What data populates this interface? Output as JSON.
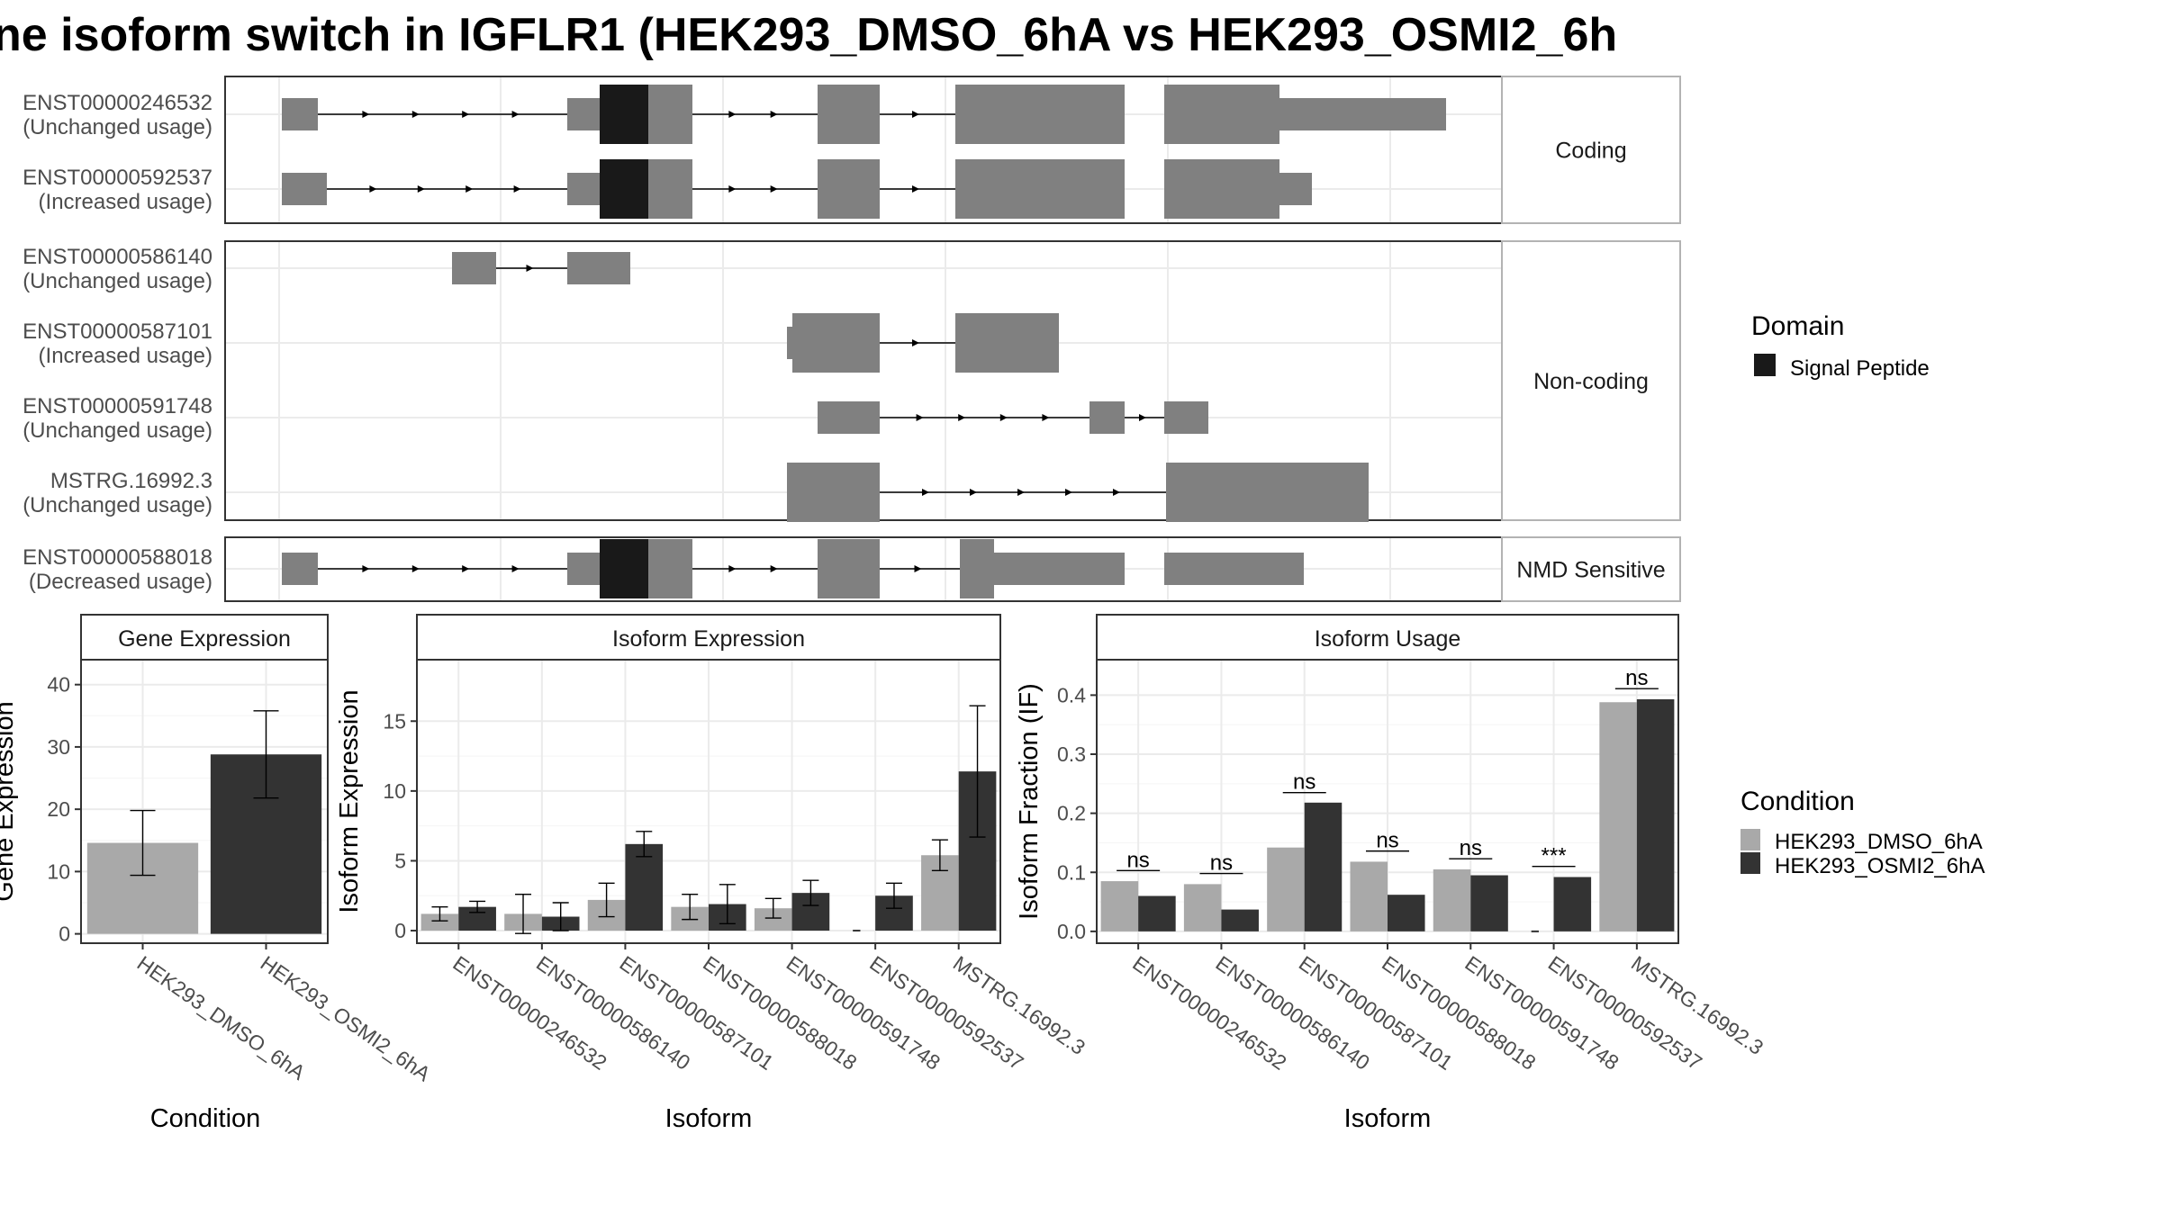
{
  "title": "ne isoform switch in IGFLR1 (HEK293_DMSO_6hA vs HEK293_OSMI2_6h",
  "colors": {
    "condition_1": "#a9a9a9",
    "condition_2": "#333333",
    "exon": "#808080",
    "domain": "#191919"
  },
  "structure": {
    "groups": [
      {
        "label": "Coding",
        "transcripts": [
          {
            "id": "ENST00000246532",
            "usage": "(Unchanged usage)"
          },
          {
            "id": "ENST00000592537",
            "usage": "(Increased usage)"
          }
        ]
      },
      {
        "label": "Non-coding",
        "transcripts": [
          {
            "id": "ENST00000586140",
            "usage": "(Unchanged usage)"
          },
          {
            "id": "ENST00000587101",
            "usage": "(Increased usage)"
          },
          {
            "id": "ENST00000591748",
            "usage": "(Unchanged usage)"
          },
          {
            "id": "MSTRG.16992.3",
            "usage": "(Unchanged usage)"
          }
        ]
      },
      {
        "label": "NMD Sensitive",
        "transcripts": [
          {
            "id": "ENST00000588018",
            "usage": "(Decreased usage)"
          }
        ]
      }
    ]
  },
  "legend_domain": {
    "title": "Domain",
    "items": [
      {
        "label": "Signal Peptide",
        "color": "#191919"
      }
    ]
  },
  "legend_condition": {
    "title": "Condition",
    "items": [
      {
        "label": "HEK293_DMSO_6hA",
        "color": "#a9a9a9"
      },
      {
        "label": "HEK293_OSMI2_6hA",
        "color": "#333333"
      }
    ]
  },
  "chart_data": [
    {
      "type": "bar",
      "panel_title": "Gene Expression",
      "xlabel": "Condition",
      "ylabel": "Gene Expression",
      "categories": [
        "HEK293_DMSO_6hA",
        "HEK293_OSMI2_6hA"
      ],
      "values": [
        14.6,
        28.8
      ],
      "errors": [
        5.2,
        7.0
      ],
      "ylim": [
        -1.5,
        44
      ],
      "yticks": [
        0,
        10,
        20,
        30,
        40
      ]
    },
    {
      "type": "bar",
      "panel_title": "Isoform Expression",
      "xlabel": "Isoform",
      "ylabel": "Isoform Expression",
      "categories": [
        "ENST00000246532",
        "ENST00000586140",
        "ENST00000587101",
        "ENST00000588018",
        "ENST00000591748",
        "ENST00000592537",
        "MSTRG.16992.3"
      ],
      "series": [
        {
          "values": [
            1.2,
            1.2,
            2.2,
            1.7,
            1.6,
            0.0,
            5.4
          ],
          "errors": [
            0.5,
            1.4,
            1.2,
            0.9,
            0.7,
            0.0,
            1.1
          ]
        },
        {
          "values": [
            1.7,
            1.0,
            6.2,
            1.9,
            2.7,
            2.5,
            11.4
          ],
          "errors": [
            0.4,
            1.0,
            0.9,
            1.4,
            0.9,
            0.9,
            4.7
          ]
        }
      ],
      "ylim": [
        -0.9,
        19.4
      ],
      "yticks": [
        0,
        5,
        10,
        15
      ]
    },
    {
      "type": "bar",
      "panel_title": "Isoform Usage",
      "xlabel": "Isoform",
      "ylabel": "Isoform Fraction (IF)",
      "categories": [
        "ENST00000246532",
        "ENST00000586140",
        "ENST00000587101",
        "ENST00000588018",
        "ENST00000591748",
        "ENST00000592537",
        "MSTRG.16992.3"
      ],
      "series": [
        {
          "values": [
            0.085,
            0.08,
            0.142,
            0.118,
            0.105,
            0.0,
            0.388
          ]
        },
        {
          "values": [
            0.06,
            0.037,
            0.218,
            0.062,
            0.095,
            0.092,
            0.393
          ]
        }
      ],
      "significance": [
        "ns",
        "ns",
        "ns",
        "ns",
        "ns",
        "***",
        "ns"
      ],
      "sig_levels": [
        0.103,
        0.098,
        0.235,
        0.136,
        0.123,
        0.11,
        0.411
      ],
      "ylim": [
        -0.02,
        0.46
      ],
      "yticks": [
        0.0,
        0.1,
        0.2,
        0.3,
        0.4
      ]
    }
  ]
}
